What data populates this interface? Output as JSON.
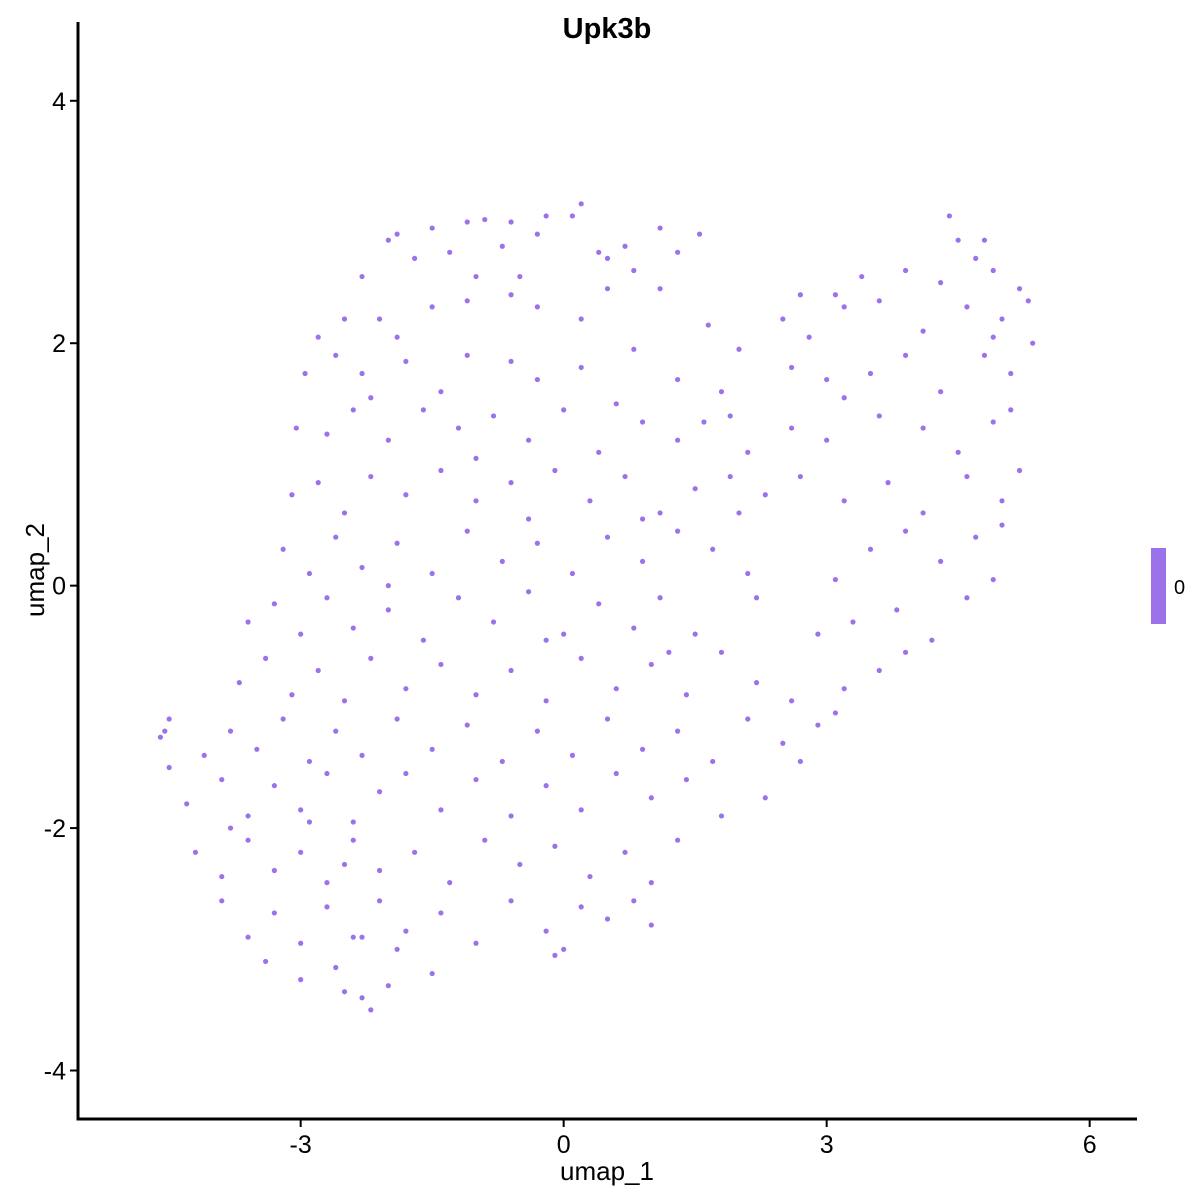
{
  "chart_data": {
    "type": "scatter",
    "title": "Upk3b",
    "xlabel": "umap_1",
    "ylabel": "umap_2",
    "xlim": [
      -5.54,
      6.54
    ],
    "ylim": [
      -4.4,
      4.65
    ],
    "xticks": [
      -3,
      0,
      3,
      6
    ],
    "yticks": [
      -4,
      -2,
      0,
      2,
      4
    ],
    "grid": false,
    "legend": {
      "position": "right",
      "type": "colorbar",
      "labels": [
        "0"
      ],
      "color": "#9B72EA"
    },
    "point_color": "#9B72EA",
    "points": [
      [
        -0.2,
        3.05
      ],
      [
        0.2,
        3.15
      ],
      [
        -0.6,
        3.0
      ],
      [
        -1.1,
        3.0
      ],
      [
        -1.5,
        2.95
      ],
      [
        -0.9,
        3.02
      ],
      [
        0.1,
        3.05
      ],
      [
        1.1,
        2.95
      ],
      [
        1.55,
        2.9
      ],
      [
        -1.9,
        2.9
      ],
      [
        4.4,
        3.05
      ],
      [
        4.8,
        2.85
      ],
      [
        -2.0,
        2.85
      ],
      [
        -1.7,
        2.7
      ],
      [
        -1.3,
        2.75
      ],
      [
        -0.7,
        2.8
      ],
      [
        -0.3,
        2.9
      ],
      [
        0.4,
        2.75
      ],
      [
        0.7,
        2.8
      ],
      [
        -2.3,
        2.55
      ],
      [
        -1.0,
        2.55
      ],
      [
        -0.5,
        2.55
      ],
      [
        0.5,
        2.7
      ],
      [
        0.8,
        2.6
      ],
      [
        1.3,
        2.75
      ],
      [
        3.4,
        2.55
      ],
      [
        3.9,
        2.6
      ],
      [
        4.3,
        2.5
      ],
      [
        4.5,
        2.85
      ],
      [
        4.7,
        2.7
      ],
      [
        5.2,
        2.45
      ],
      [
        5.3,
        2.35
      ],
      [
        4.9,
        2.6
      ],
      [
        3.1,
        2.4
      ],
      [
        2.7,
        2.4
      ],
      [
        -2.5,
        2.2
      ],
      [
        -2.8,
        2.05
      ],
      [
        -2.1,
        2.2
      ],
      [
        -1.5,
        2.3
      ],
      [
        -1.1,
        2.35
      ],
      [
        -0.6,
        2.4
      ],
      [
        -0.3,
        2.3
      ],
      [
        0.2,
        2.2
      ],
      [
        0.5,
        2.45
      ],
      [
        1.1,
        2.45
      ],
      [
        -1.9,
        2.05
      ],
      [
        1.65,
        2.15
      ],
      [
        2.8,
        2.05
      ],
      [
        3.2,
        2.3
      ],
      [
        3.6,
        2.35
      ],
      [
        4.1,
        2.1
      ],
      [
        4.6,
        2.3
      ],
      [
        5.0,
        2.2
      ],
      [
        5.35,
        2.0
      ],
      [
        2.5,
        2.2
      ],
      [
        4.9,
        2.05
      ],
      [
        -2.95,
        1.75
      ],
      [
        -2.6,
        1.9
      ],
      [
        -2.3,
        1.75
      ],
      [
        -1.8,
        1.85
      ],
      [
        -1.4,
        1.6
      ],
      [
        -1.1,
        1.9
      ],
      [
        -0.6,
        1.85
      ],
      [
        -0.3,
        1.7
      ],
      [
        0.2,
        1.8
      ],
      [
        0.8,
        1.95
      ],
      [
        1.3,
        1.7
      ],
      [
        1.8,
        1.6
      ],
      [
        2.0,
        1.95
      ],
      [
        2.6,
        1.8
      ],
      [
        3.0,
        1.7
      ],
      [
        3.5,
        1.75
      ],
      [
        3.9,
        1.9
      ],
      [
        4.3,
        1.6
      ],
      [
        4.8,
        1.9
      ],
      [
        5.1,
        1.75
      ],
      [
        -2.2,
        1.55
      ],
      [
        0.6,
        1.5
      ],
      [
        3.2,
        1.55
      ],
      [
        -3.05,
        1.3
      ],
      [
        -2.7,
        1.25
      ],
      [
        -2.4,
        1.45
      ],
      [
        -2.0,
        1.2
      ],
      [
        -1.6,
        1.45
      ],
      [
        -1.2,
        1.3
      ],
      [
        -0.8,
        1.4
      ],
      [
        -0.4,
        1.2
      ],
      [
        0.0,
        1.45
      ],
      [
        0.4,
        1.1
      ],
      [
        0.9,
        1.35
      ],
      [
        1.3,
        1.2
      ],
      [
        1.6,
        1.35
      ],
      [
        2.1,
        1.1
      ],
      [
        2.6,
        1.3
      ],
      [
        3.0,
        1.2
      ],
      [
        3.6,
        1.4
      ],
      [
        4.1,
        1.3
      ],
      [
        4.5,
        1.1
      ],
      [
        4.9,
        1.35
      ],
      [
        5.1,
        1.45
      ],
      [
        1.9,
        1.4
      ],
      [
        -1.0,
        1.05
      ],
      [
        -3.1,
        0.75
      ],
      [
        -2.8,
        0.85
      ],
      [
        -2.5,
        0.6
      ],
      [
        -2.2,
        0.9
      ],
      [
        -1.8,
        0.75
      ],
      [
        -1.4,
        0.95
      ],
      [
        -1.0,
        0.7
      ],
      [
        -0.6,
        0.85
      ],
      [
        -0.1,
        0.95
      ],
      [
        0.3,
        0.7
      ],
      [
        0.7,
        0.9
      ],
      [
        1.1,
        0.6
      ],
      [
        1.5,
        0.8
      ],
      [
        1.9,
        0.9
      ],
      [
        2.3,
        0.75
      ],
      [
        2.7,
        0.9
      ],
      [
        3.2,
        0.7
      ],
      [
        3.7,
        0.85
      ],
      [
        4.1,
        0.6
      ],
      [
        4.6,
        0.9
      ],
      [
        5.0,
        0.7
      ],
      [
        5.2,
        0.95
      ],
      [
        0.9,
        0.55
      ],
      [
        -0.4,
        0.55
      ],
      [
        2.0,
        0.6
      ],
      [
        -3.2,
        0.3
      ],
      [
        -2.9,
        0.1
      ],
      [
        -2.6,
        0.4
      ],
      [
        -2.3,
        0.15
      ],
      [
        -1.9,
        0.35
      ],
      [
        -1.5,
        0.1
      ],
      [
        -1.1,
        0.45
      ],
      [
        -0.7,
        0.2
      ],
      [
        -0.3,
        0.35
      ],
      [
        0.1,
        0.1
      ],
      [
        0.5,
        0.4
      ],
      [
        0.9,
        0.2
      ],
      [
        1.3,
        0.45
      ],
      [
        1.7,
        0.3
      ],
      [
        2.1,
        0.1
      ],
      [
        3.5,
        0.3
      ],
      [
        3.9,
        0.45
      ],
      [
        4.3,
        0.2
      ],
      [
        4.7,
        0.4
      ],
      [
        5.0,
        0.5
      ],
      [
        4.9,
        0.05
      ],
      [
        3.1,
        0.05
      ],
      [
        -2.0,
        0.0
      ],
      [
        -3.6,
        -0.3
      ],
      [
        -3.3,
        -0.15
      ],
      [
        -3.0,
        -0.4
      ],
      [
        -2.7,
        -0.1
      ],
      [
        -2.4,
        -0.35
      ],
      [
        -2.0,
        -0.2
      ],
      [
        -1.6,
        -0.45
      ],
      [
        -1.2,
        -0.1
      ],
      [
        -0.8,
        -0.3
      ],
      [
        -0.4,
        -0.05
      ],
      [
        0.0,
        -0.4
      ],
      [
        0.4,
        -0.15
      ],
      [
        0.8,
        -0.35
      ],
      [
        1.1,
        -0.1
      ],
      [
        1.5,
        -0.4
      ],
      [
        2.2,
        -0.1
      ],
      [
        3.3,
        -0.3
      ],
      [
        3.8,
        -0.2
      ],
      [
        4.2,
        -0.45
      ],
      [
        4.6,
        -0.1
      ],
      [
        -0.2,
        -0.45
      ],
      [
        2.9,
        -0.4
      ],
      [
        -3.7,
        -0.8
      ],
      [
        -3.4,
        -0.6
      ],
      [
        -3.1,
        -0.9
      ],
      [
        -2.8,
        -0.7
      ],
      [
        -2.5,
        -0.95
      ],
      [
        -2.2,
        -0.6
      ],
      [
        -1.8,
        -0.85
      ],
      [
        -1.4,
        -0.65
      ],
      [
        -1.0,
        -0.9
      ],
      [
        -0.6,
        -0.7
      ],
      [
        -0.2,
        -0.95
      ],
      [
        0.2,
        -0.6
      ],
      [
        0.6,
        -0.85
      ],
      [
        1.0,
        -0.65
      ],
      [
        1.4,
        -0.9
      ],
      [
        1.8,
        -0.55
      ],
      [
        2.2,
        -0.8
      ],
      [
        2.6,
        -0.95
      ],
      [
        3.2,
        -0.85
      ],
      [
        3.6,
        -0.7
      ],
      [
        3.9,
        -0.55
      ],
      [
        1.2,
        -0.55
      ],
      [
        -4.55,
        -1.2
      ],
      [
        -4.6,
        -1.25
      ],
      [
        -4.5,
        -1.1
      ],
      [
        -4.1,
        -1.4
      ],
      [
        -3.8,
        -1.2
      ],
      [
        -3.5,
        -1.35
      ],
      [
        -3.2,
        -1.1
      ],
      [
        -2.9,
        -1.45
      ],
      [
        -2.6,
        -1.2
      ],
      [
        -2.3,
        -1.4
      ],
      [
        -1.9,
        -1.1
      ],
      [
        -1.5,
        -1.35
      ],
      [
        -1.1,
        -1.15
      ],
      [
        -0.7,
        -1.45
      ],
      [
        -0.3,
        -1.2
      ],
      [
        0.1,
        -1.4
      ],
      [
        0.5,
        -1.1
      ],
      [
        0.9,
        -1.35
      ],
      [
        1.3,
        -1.2
      ],
      [
        1.7,
        -1.45
      ],
      [
        2.1,
        -1.1
      ],
      [
        2.5,
        -1.3
      ],
      [
        2.9,
        -1.15
      ],
      [
        3.1,
        -1.05
      ],
      [
        2.7,
        -1.45
      ],
      [
        -4.5,
        -1.5
      ],
      [
        -4.3,
        -1.8
      ],
      [
        -3.9,
        -1.6
      ],
      [
        -3.6,
        -1.9
      ],
      [
        -3.3,
        -1.65
      ],
      [
        -3.0,
        -1.85
      ],
      [
        -2.7,
        -1.55
      ],
      [
        -2.4,
        -1.95
      ],
      [
        -2.1,
        -1.7
      ],
      [
        -1.8,
        -1.55
      ],
      [
        -1.4,
        -1.85
      ],
      [
        -1.0,
        -1.6
      ],
      [
        -0.6,
        -1.9
      ],
      [
        -0.2,
        -1.65
      ],
      [
        0.2,
        -1.85
      ],
      [
        0.6,
        -1.55
      ],
      [
        1.0,
        -1.75
      ],
      [
        1.4,
        -1.6
      ],
      [
        1.8,
        -1.9
      ],
      [
        2.3,
        -1.75
      ],
      [
        -2.9,
        -1.95
      ],
      [
        -4.2,
        -2.2
      ],
      [
        -3.9,
        -2.4
      ],
      [
        -3.6,
        -2.1
      ],
      [
        -3.3,
        -2.35
      ],
      [
        -3.0,
        -2.2
      ],
      [
        -2.7,
        -2.45
      ],
      [
        -2.4,
        -2.1
      ],
      [
        -2.1,
        -2.35
      ],
      [
        -1.7,
        -2.2
      ],
      [
        -1.3,
        -2.45
      ],
      [
        -0.9,
        -2.1
      ],
      [
        -0.5,
        -2.3
      ],
      [
        -0.1,
        -2.15
      ],
      [
        0.3,
        -2.4
      ],
      [
        0.7,
        -2.2
      ],
      [
        1.0,
        -2.45
      ],
      [
        1.3,
        -2.1
      ],
      [
        -2.5,
        -2.3
      ],
      [
        -3.8,
        -2.0
      ],
      [
        -3.9,
        -2.6
      ],
      [
        -3.6,
        -2.9
      ],
      [
        -3.3,
        -2.7
      ],
      [
        -3.0,
        -2.95
      ],
      [
        -2.7,
        -2.65
      ],
      [
        -2.4,
        -2.9
      ],
      [
        -2.1,
        -2.6
      ],
      [
        -1.8,
        -2.85
      ],
      [
        -1.4,
        -2.7
      ],
      [
        -1.0,
        -2.95
      ],
      [
        -0.6,
        -2.6
      ],
      [
        -0.2,
        -2.85
      ],
      [
        0.2,
        -2.65
      ],
      [
        0.5,
        -2.75
      ],
      [
        0.8,
        -2.6
      ],
      [
        1.0,
        -2.8
      ],
      [
        0.0,
        -3.0
      ],
      [
        -2.3,
        -2.9
      ],
      [
        -3.4,
        -3.1
      ],
      [
        -3.0,
        -3.25
      ],
      [
        -2.6,
        -3.15
      ],
      [
        -2.3,
        -3.4
      ],
      [
        -2.2,
        -3.5
      ],
      [
        -2.0,
        -3.3
      ],
      [
        -1.5,
        -3.2
      ],
      [
        -0.1,
        -3.05
      ],
      [
        -2.5,
        -3.35
      ],
      [
        -1.9,
        -3.0
      ]
    ]
  }
}
